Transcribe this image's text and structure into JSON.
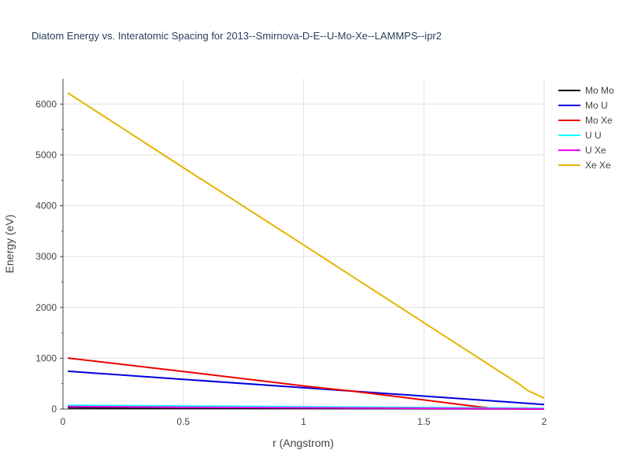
{
  "chart_data": {
    "type": "line",
    "title": "Diatom Energy vs. Interatomic Spacing for 2013--Smirnova-D-E--U-Mo-Xe--LAMMPS--ipr2",
    "xlabel": "r (Angstrom)",
    "ylabel": "Energy (eV)",
    "xlim": [
      0,
      2
    ],
    "ylim": [
      0,
      6500
    ],
    "xticks": [
      "0",
      "0.5",
      "1",
      "1.5",
      "2"
    ],
    "xtick_values": [
      0,
      0.5,
      1,
      1.5,
      2
    ],
    "yticks": [
      "0",
      "1000",
      "2000",
      "3000",
      "4000",
      "5000",
      "6000"
    ],
    "ytick_values": [
      0,
      1000,
      2000,
      3000,
      4000,
      5000,
      6000
    ],
    "grid": true,
    "legend_position": "top-right",
    "series": [
      {
        "name": "Mo Mo",
        "color": "#000000",
        "x": [
          0.02,
          0.5,
          1.0,
          1.5,
          2.0
        ],
        "y": [
          25,
          20,
          14,
          8,
          3
        ]
      },
      {
        "name": "Mo U",
        "color": "#0000dd",
        "x": [
          0.02,
          0.5,
          1.0,
          1.5,
          2.0
        ],
        "y": [
          745,
          585,
          420,
          255,
          90
        ]
      },
      {
        "name": "Mo Xe",
        "color": "#ee0000",
        "x": [
          0.02,
          0.5,
          1.0,
          1.2,
          1.5,
          1.7,
          1.8,
          1.9,
          2.0
        ],
        "y": [
          1005,
          740,
          455,
          355,
          180,
          60,
          10,
          2,
          0
        ]
      },
      {
        "name": "U U",
        "color": "#00ffff",
        "x": [
          0.02,
          0.5,
          1.0,
          1.5,
          2.0
        ],
        "y": [
          75,
          60,
          45,
          30,
          15
        ]
      },
      {
        "name": "U Xe",
        "color": "#ee00ee",
        "x": [
          0.02,
          0.5,
          1.0,
          1.5,
          2.0
        ],
        "y": [
          50,
          35,
          25,
          15,
          5
        ]
      },
      {
        "name": "Xe Xe",
        "color": "#e6b400",
        "x": [
          0.02,
          0.5,
          1.0,
          1.5,
          1.9,
          1.93,
          2.0
        ],
        "y": [
          6220,
          4750,
          3230,
          1700,
          480,
          370,
          215
        ]
      }
    ]
  }
}
